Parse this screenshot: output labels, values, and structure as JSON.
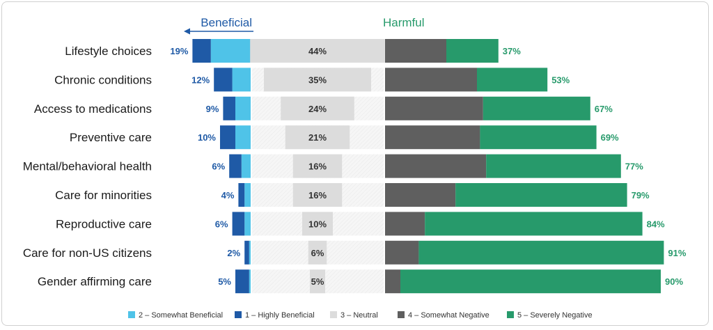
{
  "chart_data": {
    "type": "bar",
    "subtype": "diverging-stacked",
    "headers": {
      "beneficial": "Beneficial",
      "harmful": "Harmful"
    },
    "categories": [
      "Lifestyle choices",
      "Chronic conditions",
      "Access to medications",
      "Preventive care",
      "Mental/behavioral health",
      "Care for minorities",
      "Reproductive care",
      "Care for non-US citizens",
      "Gender affirming care"
    ],
    "beneficial_totals": [
      "19%",
      "12%",
      "9%",
      "10%",
      "6%",
      "4%",
      "6%",
      "2%",
      "5%"
    ],
    "neutral_labels": [
      "44%",
      "35%",
      "24%",
      "21%",
      "16%",
      "16%",
      "10%",
      "6%",
      "5%"
    ],
    "harmful_totals": [
      "37%",
      "53%",
      "67%",
      "69%",
      "77%",
      "79%",
      "84%",
      "91%",
      "90%"
    ],
    "series": [
      {
        "name": "2 – Somewhat Beneficial",
        "color": "#4fc3e8",
        "values": [
          13,
          6,
          5,
          5,
          3,
          2,
          2,
          0.5,
          0.5
        ]
      },
      {
        "name": "1 – Highly Beneficial",
        "color": "#1f5aa6",
        "values": [
          6,
          6,
          4,
          5,
          4,
          2,
          4,
          1.5,
          4.5
        ]
      },
      {
        "name": "3 – Neutral",
        "color": "#dcdcdc",
        "values": [
          44,
          35,
          24,
          21,
          16,
          16,
          10,
          6,
          5
        ]
      },
      {
        "name": "4 – Somewhat Negative",
        "color": "#5f5f5f",
        "values": [
          20,
          30,
          32,
          31,
          33,
          23,
          13,
          11,
          5
        ]
      },
      {
        "name": "5 – Severely Negative",
        "color": "#279a6b",
        "values": [
          17,
          23,
          35,
          38,
          44,
          56,
          71,
          80,
          85
        ]
      }
    ],
    "legend_position": "bottom",
    "colors": {
      "beneficial_text": "#1f5aa6",
      "harmful_text": "#279a6b",
      "neutral_text": "#333333"
    }
  }
}
